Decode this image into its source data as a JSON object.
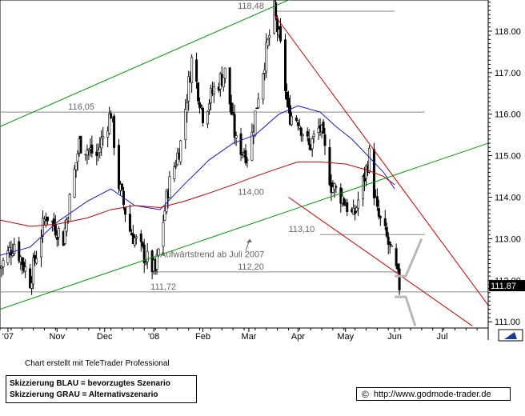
{
  "chart_data": {
    "type": "candlestick",
    "y_axis": {
      "position": "right",
      "range": [
        110.85,
        118.75
      ],
      "ticks": [
        111.0,
        112.0,
        113.0,
        114.0,
        115.0,
        116.0,
        117.0,
        118.0
      ],
      "tick_labels": [
        "111.00",
        "112.00",
        "113.00",
        "114.00",
        "115.00",
        "116.00",
        "117.00",
        "118.00"
      ],
      "last_price_label": "111.87",
      "last_price": 111.87
    },
    "x_axis": {
      "range": [
        "2007-09-26",
        "2008-07-30"
      ],
      "tick_labels": [
        {
          "label": "'07",
          "date": "2007-10-01"
        },
        {
          "label": "Nov",
          "date": "2007-11-01"
        },
        {
          "label": "Dec",
          "date": "2007-12-01"
        },
        {
          "label": "'08",
          "date": "2008-01-01"
        },
        {
          "label": "Feb",
          "date": "2008-02-01"
        },
        {
          "label": "Mar",
          "date": "2008-03-01"
        },
        {
          "label": "Apr",
          "date": "2008-04-01"
        },
        {
          "label": "May",
          "date": "2008-05-01"
        },
        {
          "label": "Jun",
          "date": "2008-06-01"
        },
        {
          "label": "Jul",
          "date": "2008-07-01"
        }
      ]
    },
    "price_anchors": [
      [
        "2007-09-26",
        112.3
      ],
      [
        "2007-10-05",
        112.9
      ],
      [
        "2007-10-15",
        112.0
      ],
      [
        "2007-10-25",
        113.6
      ],
      [
        "2007-11-05",
        113.0
      ],
      [
        "2007-11-15",
        115.3
      ],
      [
        "2007-11-26",
        115.0
      ],
      [
        "2007-12-05",
        116.05
      ],
      [
        "2007-12-10",
        114.3
      ],
      [
        "2007-12-17",
        113.2
      ],
      [
        "2007-12-26",
        112.6
      ],
      [
        "2008-01-02",
        112.2
      ],
      [
        "2008-01-10",
        114.2
      ],
      [
        "2008-01-18",
        115.3
      ],
      [
        "2008-01-25",
        117.3
      ],
      [
        "2008-02-01",
        116.0
      ],
      [
        "2008-02-08",
        116.6
      ],
      [
        "2008-02-15",
        117.0
      ],
      [
        "2008-02-22",
        115.3
      ],
      [
        "2008-03-01",
        115.0
      ],
      [
        "2008-03-07",
        116.5
      ],
      [
        "2008-03-13",
        117.7
      ],
      [
        "2008-03-17",
        118.48
      ],
      [
        "2008-03-21",
        117.6
      ],
      [
        "2008-03-26",
        116.0
      ],
      [
        "2008-04-01",
        115.9
      ],
      [
        "2008-04-08",
        115.2
      ],
      [
        "2008-04-15",
        115.7
      ],
      [
        "2008-04-22",
        114.3
      ],
      [
        "2008-04-29",
        114.0
      ],
      [
        "2008-05-06",
        113.5
      ],
      [
        "2008-05-13",
        114.5
      ],
      [
        "2008-05-16",
        115.0
      ],
      [
        "2008-05-21",
        113.6
      ],
      [
        "2008-05-27",
        113.0
      ],
      [
        "2008-06-02",
        112.2
      ],
      [
        "2008-06-04",
        111.87
      ]
    ],
    "moving_averages": [
      {
        "color": "#1a1acc",
        "points": [
          [
            "2007-09-26",
            112.6
          ],
          [
            "2007-10-15",
            112.8
          ],
          [
            "2007-11-01",
            113.4
          ],
          [
            "2007-11-20",
            113.9
          ],
          [
            "2007-12-05",
            114.2
          ],
          [
            "2007-12-20",
            113.8
          ],
          [
            "2008-01-05",
            113.7
          ],
          [
            "2008-01-20",
            114.3
          ],
          [
            "2008-02-05",
            114.9
          ],
          [
            "2008-02-20",
            115.3
          ],
          [
            "2008-03-05",
            115.5
          ],
          [
            "2008-03-20",
            116.0
          ],
          [
            "2008-04-01",
            116.2
          ],
          [
            "2008-04-15",
            116.05
          ],
          [
            "2008-04-25",
            115.7
          ],
          [
            "2008-05-05",
            115.4
          ],
          [
            "2008-05-15",
            115.0
          ],
          [
            "2008-05-25",
            114.6
          ],
          [
            "2008-06-01",
            114.2
          ]
        ]
      },
      {
        "color": "#c00000",
        "points": [
          [
            "2007-09-26",
            113.45
          ],
          [
            "2007-10-15",
            113.3
          ],
          [
            "2007-11-01",
            113.35
          ],
          [
            "2007-11-20",
            113.5
          ],
          [
            "2007-12-05",
            113.7
          ],
          [
            "2007-12-20",
            113.8
          ],
          [
            "2008-01-05",
            113.75
          ],
          [
            "2008-01-20",
            113.9
          ],
          [
            "2008-02-05",
            114.1
          ],
          [
            "2008-02-20",
            114.3
          ],
          [
            "2008-03-05",
            114.5
          ],
          [
            "2008-03-20",
            114.7
          ],
          [
            "2008-04-01",
            114.85
          ],
          [
            "2008-04-15",
            114.85
          ],
          [
            "2008-05-01",
            114.8
          ],
          [
            "2008-05-15",
            114.65
          ],
          [
            "2008-05-25",
            114.5
          ],
          [
            "2008-06-01",
            114.3
          ]
        ]
      }
    ],
    "horizontal_levels": [
      {
        "value": 118.48,
        "label": "118,48",
        "from": "2008-03-17",
        "to": "2008-06-01"
      },
      {
        "value": 116.05,
        "label": "116,05",
        "from": "2007-09-26",
        "to": "2008-06-20"
      },
      {
        "value": 114.0,
        "label": "114,00",
        "from": null,
        "to": null
      },
      {
        "value": 113.1,
        "label": "113,10",
        "from": "2008-04-15",
        "to": "2008-06-20"
      },
      {
        "value": 112.2,
        "label": "112,20",
        "from": "2008-01-02",
        "to": "2008-06-04"
      },
      {
        "value": 111.72,
        "label": "111,72",
        "from": "2007-09-26",
        "to": "2008-07-30"
      }
    ],
    "trend_lines": [
      {
        "color": "#009900",
        "from": [
          "2007-09-26",
          115.7
        ],
        "to": [
          "2008-04-04",
          118.9
        ]
      },
      {
        "color": "#009900",
        "from": [
          "2007-09-26",
          111.3
        ],
        "to": [
          "2008-07-30",
          115.3
        ]
      },
      {
        "color": "#cc0000",
        "from": [
          "2008-03-17",
          118.4
        ],
        "to": [
          "2008-07-30",
          111.4
        ]
      },
      {
        "color": "#cc0000",
        "from": [
          "2008-03-26",
          114.0
        ],
        "to": [
          "2008-07-20",
          110.9
        ]
      }
    ],
    "scenario_paths": [
      {
        "scenario": "blue",
        "color": "#b8b8b8",
        "points": [
          [
            "2008-06-01",
            112.1
          ],
          [
            "2008-06-08",
            112.1
          ],
          [
            "2008-06-18",
            113.0
          ]
        ]
      },
      {
        "scenario": "grey",
        "color": "#b8b8b8",
        "points": [
          [
            "2008-06-01",
            111.6
          ],
          [
            "2008-06-08",
            111.6
          ],
          [
            "2008-06-14",
            110.9
          ]
        ]
      }
    ],
    "annotations": [
      {
        "text": "Aufwärtstrend ab Juli 2007",
        "date": "2008-01-05",
        "value": 112.5
      },
      {
        "text": "118,48",
        "date": "2008-02-23",
        "value": 118.48
      },
      {
        "text": "116,05",
        "date": "2007-11-08",
        "value": 116.05
      },
      {
        "text": "114,00",
        "date": "2008-02-23",
        "value": 114.0
      },
      {
        "text": "113,10",
        "date": "2008-03-26",
        "value": 113.1
      },
      {
        "text": "112,20",
        "date": "2008-02-23",
        "value": 112.2
      },
      {
        "text": "111,72",
        "date": "2007-12-30",
        "value": 111.72
      }
    ]
  },
  "footer": {
    "credit": "Chart erstellt mit TeleTrader Professional",
    "legend_line1": "Skizzierung BLAU = bevorzugtes Szenario",
    "legend_line2": "Skizzierung GRAU = Alternativszenario",
    "copyright_symbol": "©",
    "url": "http://www.godmode-trader.de"
  },
  "toolbar": {
    "scroll_icon": "scroll-arrow-icon"
  }
}
